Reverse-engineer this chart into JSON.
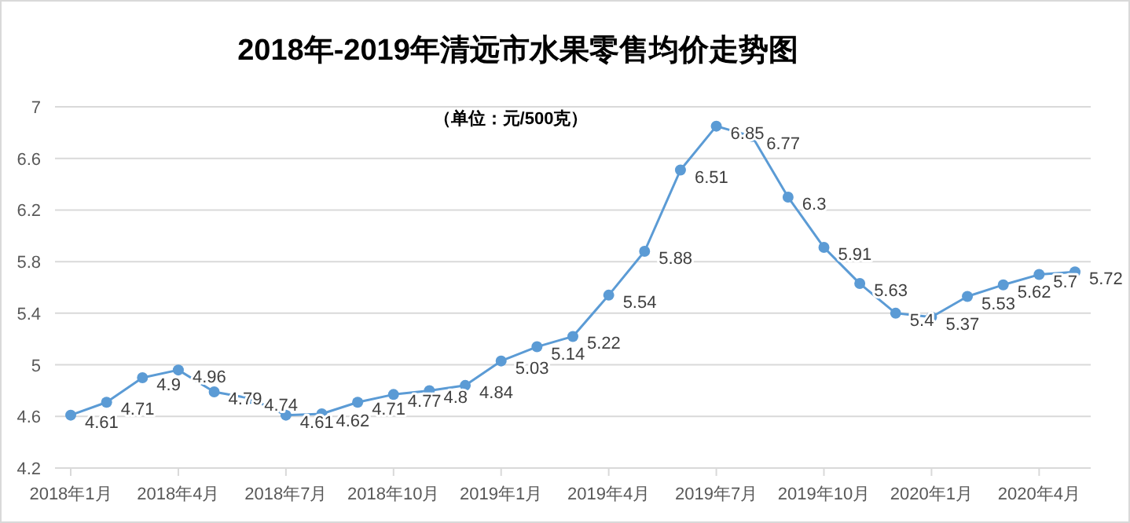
{
  "chart_data": {
    "type": "line",
    "title": "2018年-2019年清远市水果零售均价走势图",
    "subtitle": "（单位：元/500克）",
    "categories": [
      "2018年1月",
      null,
      null,
      "2018年4月",
      null,
      null,
      "2018年7月",
      null,
      null,
      "2018年10月",
      null,
      null,
      "2019年1月",
      null,
      null,
      "2019年4月",
      null,
      null,
      "2019年7月",
      null,
      null,
      "2019年10月",
      null,
      null,
      "2020年1月",
      null,
      null,
      "2020年4月",
      null
    ],
    "series": [
      {
        "color": "#5b9bd5",
        "values": [
          4.61,
          4.71,
          4.9,
          4.96,
          4.79,
          4.74,
          4.61,
          4.62,
          4.71,
          4.77,
          4.8,
          4.84,
          5.03,
          5.14,
          5.22,
          5.54,
          5.88,
          6.51,
          6.85,
          6.77,
          6.3,
          5.91,
          5.63,
          5.4,
          5.37,
          5.53,
          5.62,
          5.7,
          5.72
        ]
      }
    ],
    "ylim": [
      4.2,
      7
    ],
    "yticks": [
      4.2,
      4.6,
      5,
      5.4,
      5.8,
      6.2,
      6.6,
      7
    ],
    "grid": "y",
    "marker": "circle",
    "line_style": "solid",
    "data_labels": true
  }
}
